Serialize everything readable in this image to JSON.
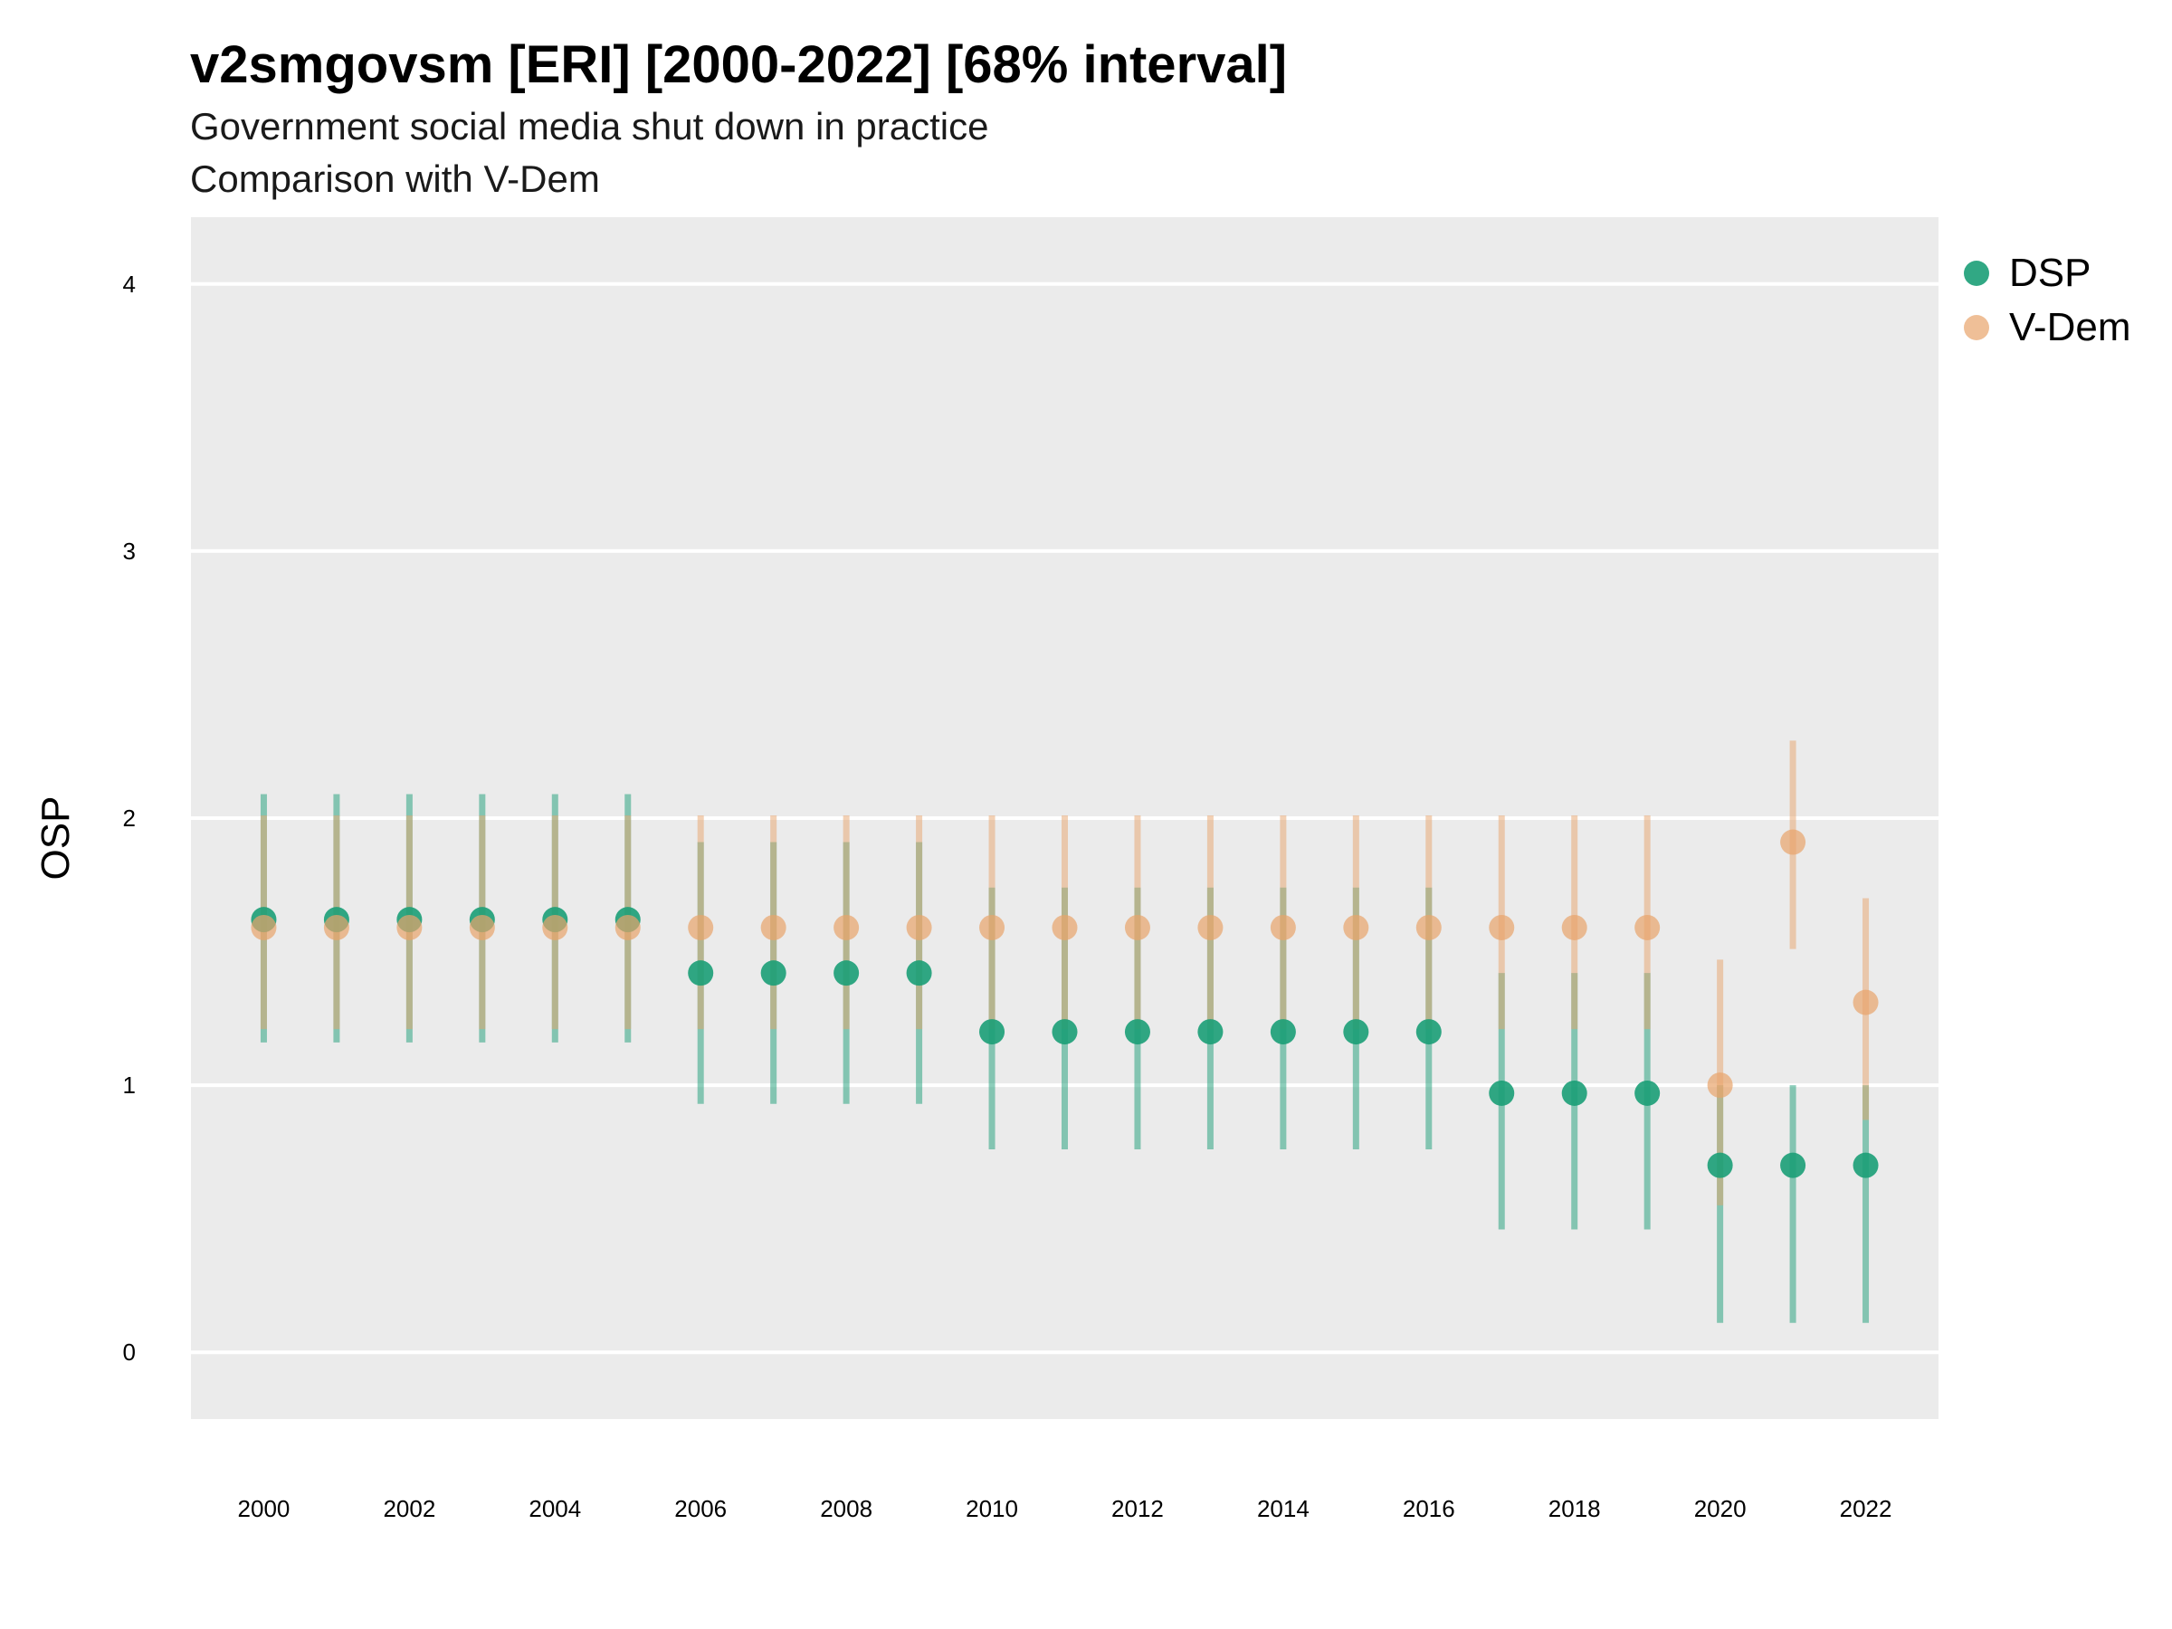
{
  "title": "v2smgovsm [ERI] [2000-2022] [68% interval]",
  "subtitle_1": "Government social media shut down in practice",
  "subtitle_2": "Comparison with V-Dem",
  "colors": {
    "panel": "#ebebeb",
    "grid": "#ffffff",
    "dsp": "#1b9e77",
    "vdem": "#e8a46b"
  },
  "chart_data": {
    "type": "scatter",
    "ylabel": "OSP",
    "ylim": [
      -0.25,
      4.25
    ],
    "xlim": [
      1999,
      2023
    ],
    "y_ticks": [
      0,
      1,
      2,
      3,
      4
    ],
    "x_ticks": [
      2000,
      2002,
      2004,
      2006,
      2008,
      2010,
      2012,
      2014,
      2016,
      2018,
      2020,
      2022
    ],
    "grid": true,
    "legend_position": "right",
    "x": [
      2000,
      2001,
      2002,
      2003,
      2004,
      2005,
      2006,
      2007,
      2008,
      2009,
      2010,
      2011,
      2012,
      2013,
      2014,
      2015,
      2016,
      2017,
      2018,
      2019,
      2020,
      2021,
      2022
    ],
    "series": [
      {
        "name": "DSP",
        "color": "#1b9e77",
        "values": [
          1.62,
          1.62,
          1.62,
          1.62,
          1.62,
          1.62,
          1.42,
          1.42,
          1.42,
          1.42,
          1.2,
          1.2,
          1.2,
          1.2,
          1.2,
          1.2,
          1.2,
          0.97,
          0.97,
          0.97,
          0.7,
          0.7,
          0.7
        ],
        "lower": [
          1.16,
          1.16,
          1.16,
          1.16,
          1.16,
          1.16,
          0.93,
          0.93,
          0.93,
          0.93,
          0.76,
          0.76,
          0.76,
          0.76,
          0.76,
          0.76,
          0.76,
          0.46,
          0.46,
          0.46,
          0.11,
          0.11,
          0.11
        ],
        "upper": [
          2.09,
          2.09,
          2.09,
          2.09,
          2.09,
          2.09,
          1.91,
          1.91,
          1.91,
          1.91,
          1.74,
          1.74,
          1.74,
          1.74,
          1.74,
          1.74,
          1.74,
          1.42,
          1.42,
          1.42,
          1.0,
          1.0,
          1.0
        ]
      },
      {
        "name": "V-Dem",
        "color": "#e8a46b",
        "values": [
          1.59,
          1.59,
          1.59,
          1.59,
          1.59,
          1.59,
          1.59,
          1.59,
          1.59,
          1.59,
          1.59,
          1.59,
          1.59,
          1.59,
          1.59,
          1.59,
          1.59,
          1.59,
          1.59,
          1.59,
          1.0,
          1.91,
          1.31
        ],
        "lower": [
          1.21,
          1.21,
          1.21,
          1.21,
          1.21,
          1.21,
          1.21,
          1.21,
          1.21,
          1.21,
          1.21,
          1.21,
          1.21,
          1.21,
          1.21,
          1.21,
          1.21,
          1.21,
          1.21,
          1.21,
          0.55,
          1.51,
          0.87
        ],
        "upper": [
          2.01,
          2.01,
          2.01,
          2.01,
          2.01,
          2.01,
          2.01,
          2.01,
          2.01,
          2.01,
          2.01,
          2.01,
          2.01,
          2.01,
          2.01,
          2.01,
          2.01,
          2.01,
          2.01,
          2.01,
          1.47,
          2.29,
          1.7
        ]
      }
    ]
  }
}
